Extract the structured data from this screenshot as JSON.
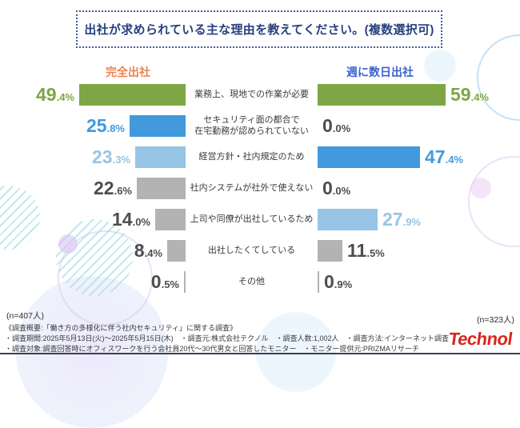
{
  "header": {
    "title": "出社が求められている主な理由を教えてください。(複数選択可)"
  },
  "columns": {
    "left": {
      "label": "完全出社",
      "accent_color": "#f0824e"
    },
    "right": {
      "label": "週に数日出社",
      "accent_color": "#3d63cc"
    }
  },
  "samples": {
    "left": "(n=407人)",
    "right": "(n=323人)"
  },
  "chart_data": {
    "type": "bar",
    "orientation": "horizontal-diverging",
    "unit": "%",
    "categories": [
      "業務上、現地での作業が必要",
      "セキュリティ面の都合で\n在宅勤務が認められていない",
      "経営方針・社内規定のため",
      "社内システムが社外で使えない",
      "上司や同僚が出社しているため",
      "出社したくてしている",
      "その他"
    ],
    "series": [
      {
        "name": "完全出社",
        "values": [
          49.4,
          25.8,
          23.3,
          22.6,
          14.0,
          8.4,
          0.5
        ]
      },
      {
        "name": "週に数日出社",
        "values": [
          59.4,
          0.0,
          47.4,
          0.0,
          27.9,
          11.5,
          0.9
        ]
      }
    ],
    "xlim": [
      0,
      60
    ],
    "grid": false,
    "bar_colors_left": [
      "#7ea645",
      "#4299dc",
      "#96c5e5",
      "#b3b3b3",
      "#b3b3b3",
      "#b3b3b3",
      "#b3b3b3"
    ],
    "bar_colors_right": [
      "#7ea645",
      "#b3b3b3",
      "#4299dc",
      "#b3b3b3",
      "#96c5e5",
      "#b3b3b3",
      "#b3b3b3"
    ],
    "value_colors_left": [
      "#7ea645",
      "#4299dc",
      "#96c5e5",
      "#4d4d4d",
      "#4d4d4d",
      "#4d4d4d",
      "#4d4d4d"
    ],
    "value_colors_right": [
      "#7ea645",
      "#4d4d4d",
      "#4299dc",
      "#4d4d4d",
      "#96c5e5",
      "#4d4d4d",
      "#4d4d4d"
    ]
  },
  "footer": {
    "line1": "《調査概要:「働き方の多様化に伴う社内セキュリティ」に関する調査》",
    "line2": "・調査期間:2025年5月13日(火)〜2025年5月15日(木)　・調査元:株式会社テクノル　・調査人数:1,002人　・調査方法:インターネット調査",
    "line3": "・調査対象:調査回答時にオフィスワークを行う会社員20代〜30代男女と回答したモニター　・モニター提供元:PRIZMAリサーチ",
    "logo": "Technol"
  }
}
